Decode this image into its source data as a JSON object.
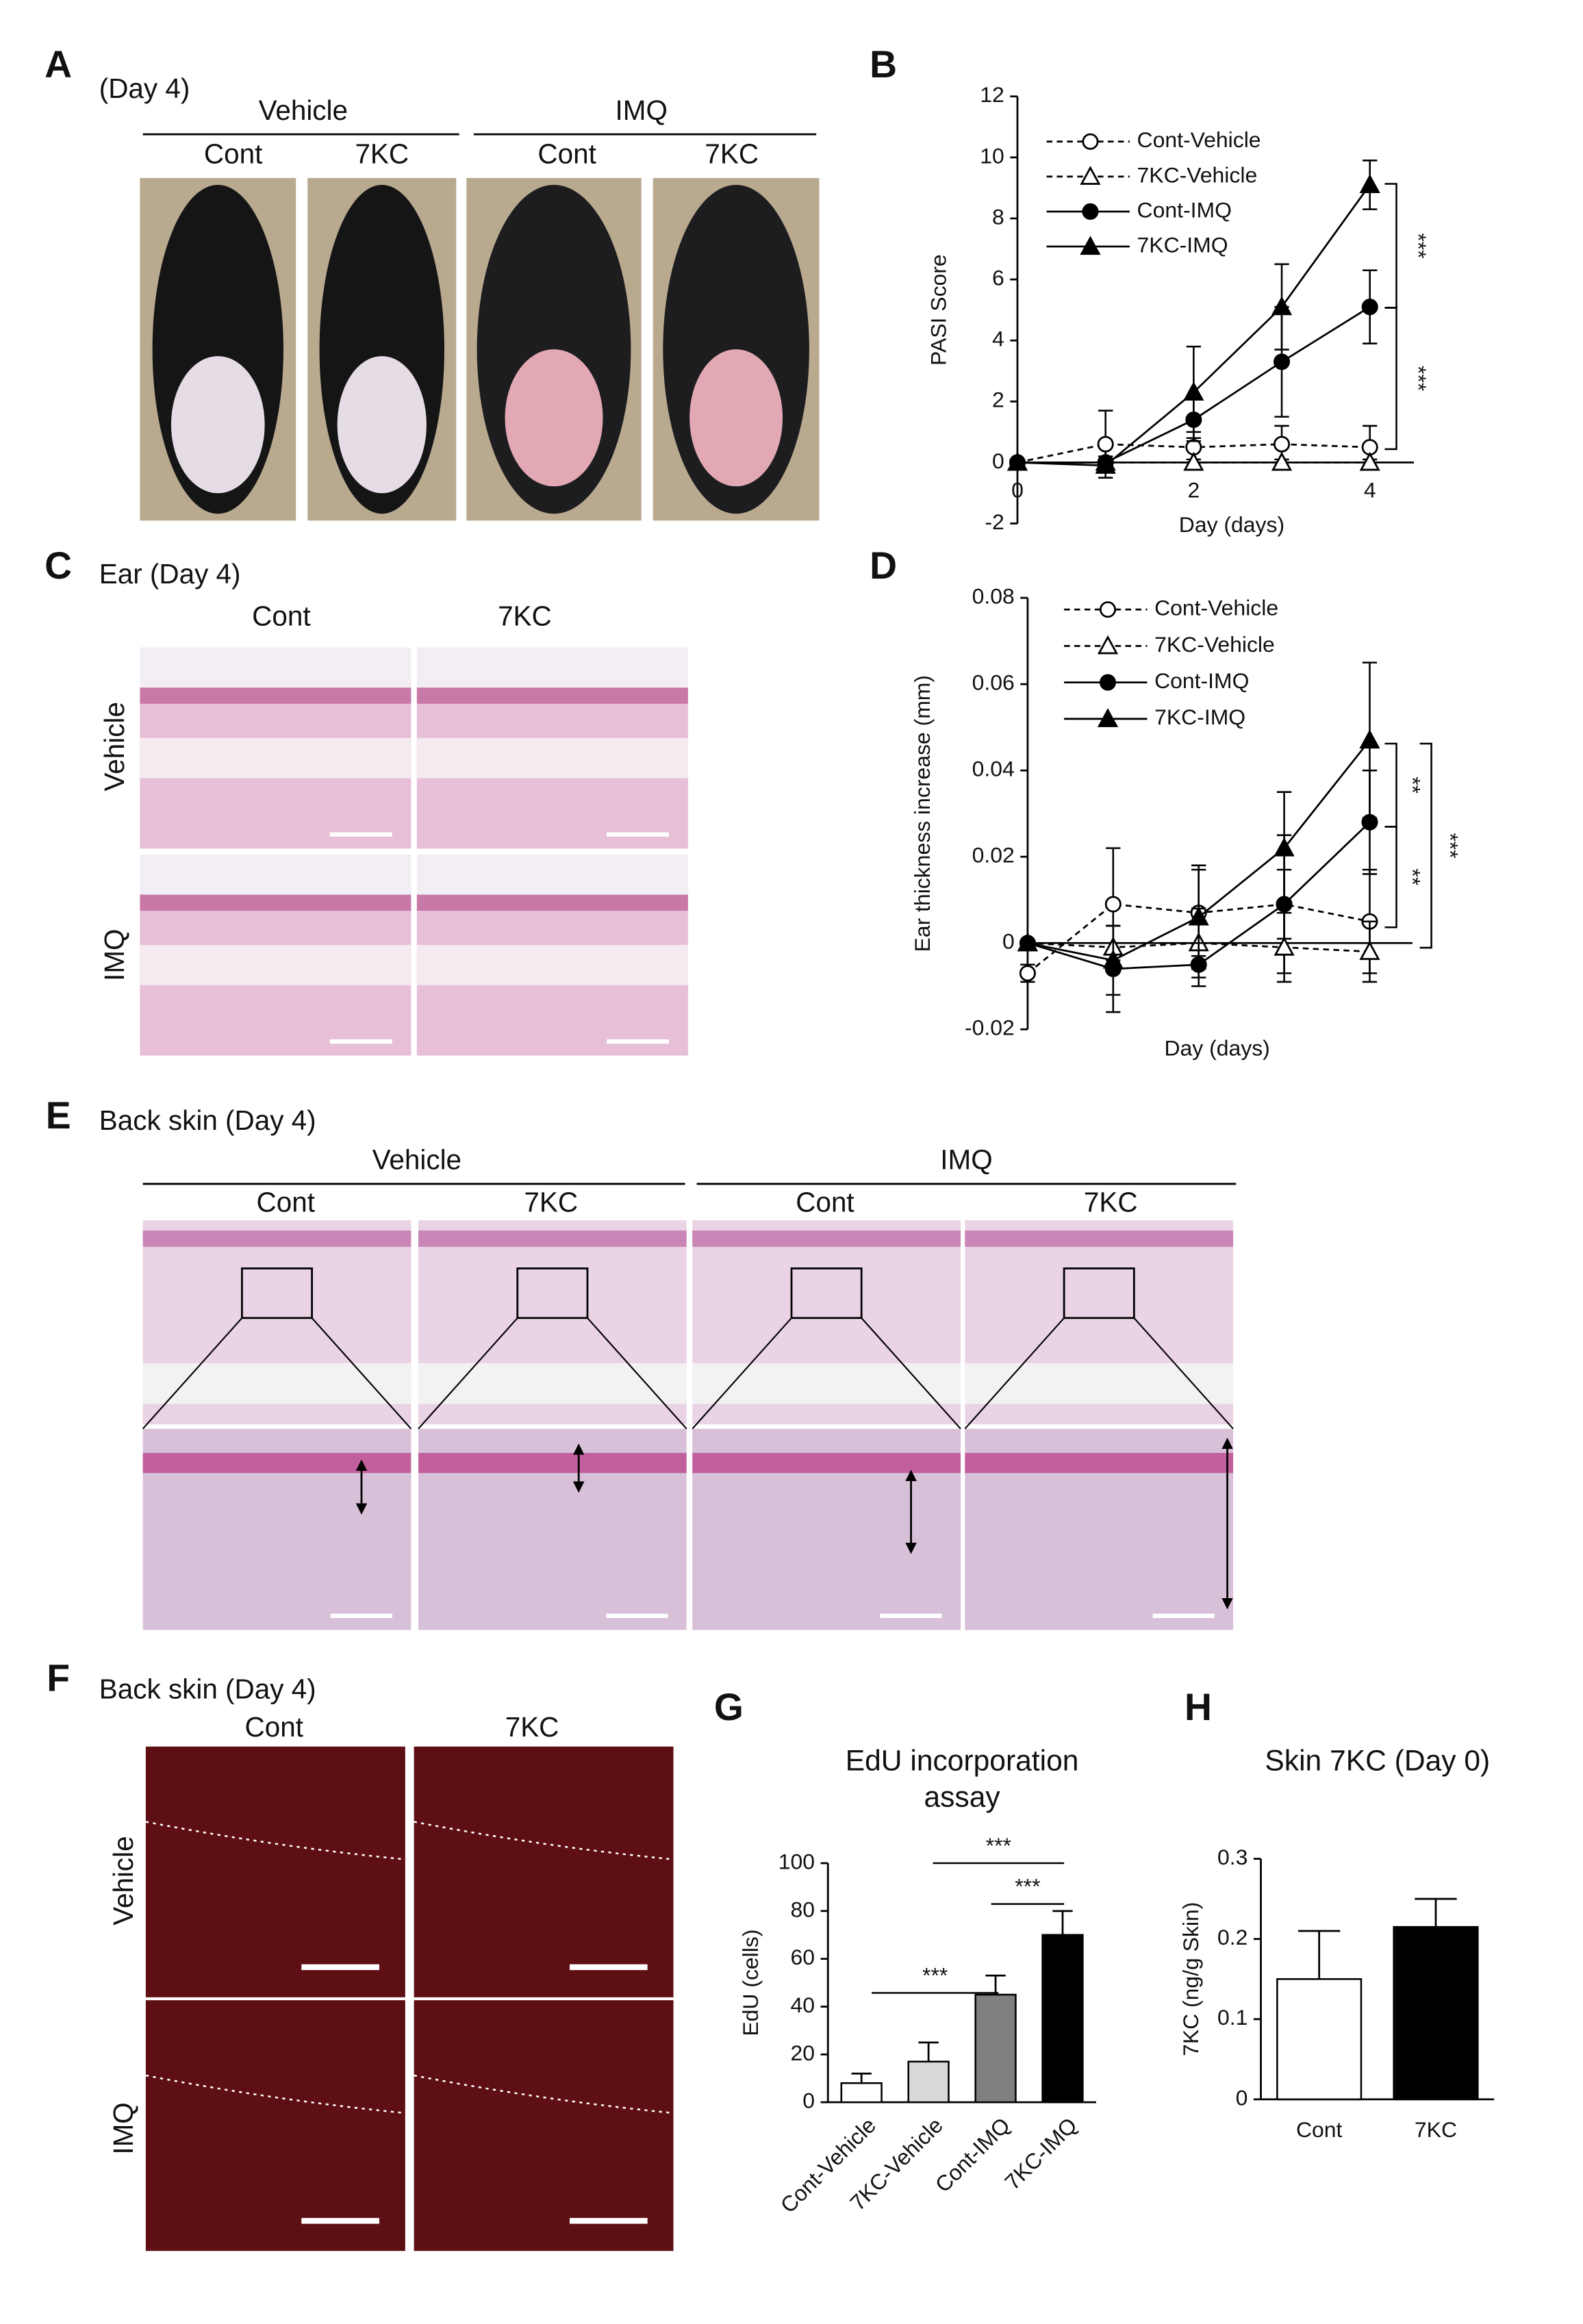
{
  "figure": {
    "A": {
      "letter": "A",
      "title": "(Day 4)",
      "groups": [
        "Vehicle",
        "IMQ"
      ],
      "columns": [
        "Cont",
        "7KC",
        "Cont",
        "7KC"
      ]
    },
    "C": {
      "letter": "C",
      "title": "Ear (Day 4)",
      "columns": [
        "Cont",
        "7KC"
      ],
      "rows": [
        "Vehicle",
        "IMQ"
      ]
    },
    "E": {
      "letter": "E",
      "title": "Back skin (Day 4)",
      "groups": [
        "Vehicle",
        "IMQ"
      ],
      "columns": [
        "Cont",
        "7KC",
        "Cont",
        "7KC"
      ]
    },
    "F": {
      "letter": "F",
      "title": "Back skin (Day 4)",
      "columns": [
        "Cont",
        "7KC"
      ],
      "rows": [
        "Vehicle",
        "IMQ"
      ]
    }
  },
  "chart_data": [
    {
      "type": "line",
      "panel": "B",
      "ylabel": "PASI Score",
      "xlabel": "Day (days)",
      "x": [
        0,
        1,
        2,
        3,
        4
      ],
      "xlim": [
        0,
        4.5
      ],
      "xticks": [
        0,
        2,
        4
      ],
      "ylim": [
        -2,
        12
      ],
      "yticks": [
        -2,
        0,
        2,
        4,
        6,
        8,
        10,
        12
      ],
      "legend": "upper left",
      "series": [
        {
          "name": "Cont-Vehicle",
          "color": "#000000",
          "marker": "circle",
          "filled": false,
          "dashed": true,
          "values": [
            0,
            0.6,
            0.5,
            0.6,
            0.5
          ],
          "errors": [
            0,
            1.1,
            0.5,
            0.6,
            0.7
          ]
        },
        {
          "name": "7KC-Vehicle",
          "color": "#000000",
          "marker": "triangle",
          "filled": false,
          "dashed": true,
          "values": [
            0,
            0,
            0,
            0,
            0
          ],
          "errors": [
            0,
            0.1,
            0.1,
            0.1,
            0.1
          ]
        },
        {
          "name": "Cont-IMQ",
          "color": "#000000",
          "marker": "circle",
          "filled": true,
          "dashed": false,
          "values": [
            0,
            0,
            1.4,
            3.3,
            5.1
          ],
          "errors": [
            0,
            0.2,
            0.7,
            1.8,
            1.2
          ]
        },
        {
          "name": "7KC-IMQ",
          "color": "#000000",
          "marker": "triangle",
          "filled": true,
          "dashed": false,
          "values": [
            0,
            -0.1,
            2.3,
            5.1,
            9.1
          ],
          "errors": [
            0,
            0.2,
            1.5,
            1.4,
            0.8
          ]
        }
      ],
      "annotations": [
        "***",
        "***"
      ]
    },
    {
      "type": "line",
      "panel": "D",
      "ylabel": "Ear thickness increase (mm)",
      "xlabel": "Day (days)",
      "x": [
        0,
        1,
        2,
        3,
        4
      ],
      "xlim": [
        0,
        4.5
      ],
      "ylim": [
        -0.02,
        0.08
      ],
      "yticks": [
        -0.02,
        0,
        0.02,
        0.04,
        0.06,
        0.08
      ],
      "legend": "upper left",
      "series": [
        {
          "name": "Cont-Vehicle",
          "color": "#000000",
          "marker": "circle",
          "filled": false,
          "dashed": true,
          "values": [
            -0.007,
            0.009,
            0.007,
            0.009,
            0.005
          ],
          "errors": [
            0.002,
            0.013,
            0.01,
            0.016,
            0.012
          ]
        },
        {
          "name": "7KC-Vehicle",
          "color": "#000000",
          "marker": "triangle",
          "filled": false,
          "dashed": true,
          "values": [
            0,
            -0.001,
            0,
            -0.001,
            -0.002
          ],
          "errors": [
            0,
            0.005,
            0.008,
            0.008,
            0.007
          ]
        },
        {
          "name": "Cont-IMQ",
          "color": "#000000",
          "marker": "circle",
          "filled": true,
          "dashed": false,
          "values": [
            0,
            -0.006,
            -0.005,
            0.009,
            0.028
          ],
          "errors": [
            0,
            0.01,
            0.005,
            0.008,
            0.012
          ]
        },
        {
          "name": "7KC-IMQ",
          "color": "#000000",
          "marker": "triangle",
          "filled": true,
          "dashed": false,
          "values": [
            0,
            -0.004,
            0.006,
            0.022,
            0.047
          ],
          "errors": [
            0,
            0.008,
            0.012,
            0.013,
            0.018
          ]
        }
      ],
      "annotations": [
        "**",
        "**",
        "***"
      ]
    },
    {
      "type": "bar",
      "panel": "G",
      "title": [
        "EdU incorporation",
        "assay"
      ],
      "ylabel": "EdU (cells)",
      "categories": [
        "Cont-Vehicle",
        "7KC-Vehicle",
        "Cont-IMQ",
        "7KC-IMQ"
      ],
      "values": [
        8,
        17,
        45,
        70
      ],
      "errors": [
        4,
        8,
        8,
        10
      ],
      "colors": [
        "#ffffff",
        "#d9d9d9",
        "#808080",
        "#000000"
      ],
      "ylim": [
        0,
        100
      ],
      "yticks": [
        0,
        20,
        40,
        60,
        80,
        100
      ],
      "annotations": [
        "***",
        "***",
        "***"
      ]
    },
    {
      "type": "bar",
      "panel": "H",
      "title": [
        "Skin 7KC (Day 0)"
      ],
      "ylabel": "7KC (ng/g Skin)",
      "categories": [
        "Cont",
        "7KC"
      ],
      "values": [
        0.15,
        0.215
      ],
      "errors": [
        0.06,
        0.035
      ],
      "colors": [
        "#ffffff",
        "#000000"
      ],
      "ylim": [
        0,
        0.3
      ],
      "yticks": [
        0,
        0.1,
        0.2,
        0.3
      ]
    }
  ]
}
